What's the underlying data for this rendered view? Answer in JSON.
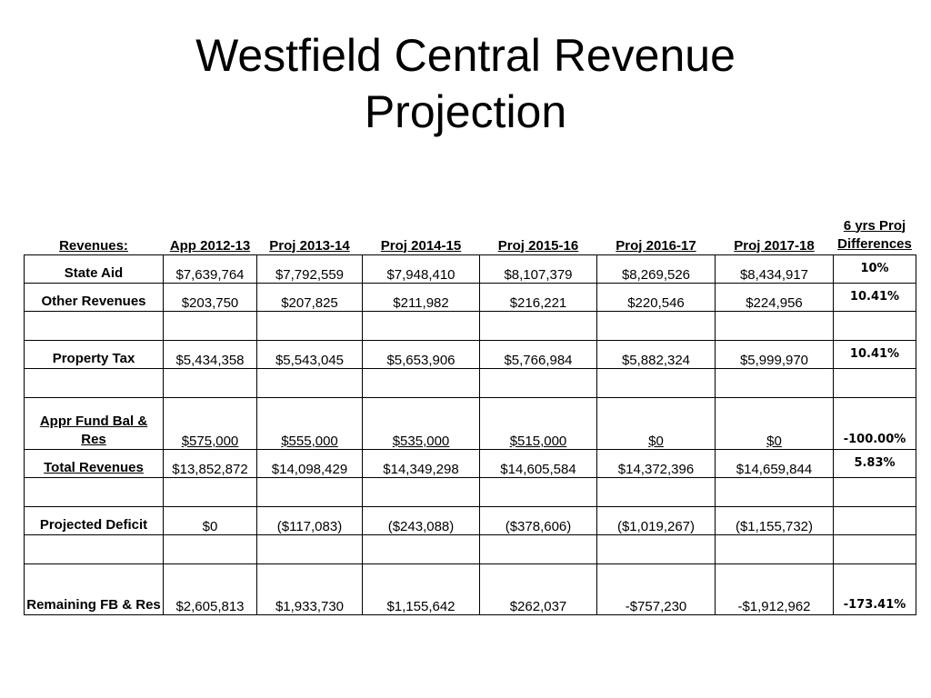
{
  "title": {
    "line1": "Westfield Central Revenue",
    "line2": "Projection"
  },
  "table": {
    "headers": [
      "Revenues:",
      "App 2012-13",
      "Proj 2013-14",
      "Proj 2014-15",
      "Proj 2015-16",
      "Proj 2016-17",
      "Proj 2017-18",
      "6 yrs Proj Differences"
    ],
    "rows": [
      {
        "label": "State Aid",
        "values": [
          "$7,639,764",
          "$7,792,559",
          "$7,948,410",
          "$8,107,379",
          "$8,269,526",
          "$8,434,917"
        ],
        "diff": "10%"
      },
      {
        "label": "Other Revenues",
        "values": [
          "$203,750",
          "$207,825",
          "$211,982",
          "$216,221",
          "$220,546",
          "$224,956"
        ],
        "diff": "10.41%"
      },
      {
        "label": "",
        "values": [
          "",
          "",
          "",
          "",
          "",
          ""
        ],
        "diff": ""
      },
      {
        "label": "Property Tax",
        "values": [
          "$5,434,358",
          "$5,543,045",
          "$5,653,906",
          "$5,766,984",
          "$5,882,324",
          "$5,999,970"
        ],
        "diff": "10.41%"
      },
      {
        "label": "",
        "values": [
          "",
          "",
          "",
          "",
          "",
          ""
        ],
        "diff": ""
      },
      {
        "label": "Appr Fund Bal & Res",
        "values": [
          "$575,000",
          "$555,000",
          "$535,000",
          "$515,000",
          "$0",
          "$0"
        ],
        "diff": "-100.00%"
      },
      {
        "label": "Total Revenues",
        "values": [
          "$13,852,872",
          "$14,098,429",
          "$14,349,298",
          "$14,605,584",
          "$14,372,396",
          "$14,659,844"
        ],
        "diff": "5.83%"
      },
      {
        "label": "",
        "values": [
          "",
          "",
          "",
          "",
          "",
          ""
        ],
        "diff": ""
      },
      {
        "label": "Projected Deficit",
        "values": [
          "$0",
          "($117,083)",
          "($243,088)",
          "($378,606)",
          "($1,019,267)",
          "($1,155,732)"
        ],
        "diff": ""
      },
      {
        "label": "",
        "values": [
          "",
          "",
          "",
          "",
          "",
          ""
        ],
        "diff": ""
      },
      {
        "label": "Remaining FB & Res",
        "values": [
          "$2,605,813",
          "$1,933,730",
          "$1,155,642",
          "$262,037",
          "-$757,230",
          "-$1,912,962"
        ],
        "diff": "-173.41%"
      }
    ]
  }
}
